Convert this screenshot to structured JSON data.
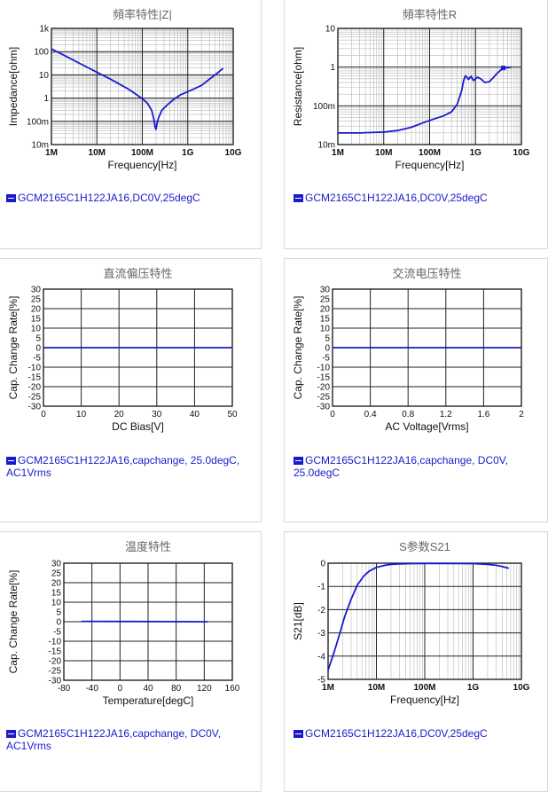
{
  "chart_data": [
    {
      "type": "line",
      "title": "頻率特性|Z|",
      "xlabel": "Frequency[Hz]",
      "ylabel": "Impedance[ohm]",
      "xscale": "log",
      "yscale": "log",
      "xlim": [
        1000000,
        10000000000
      ],
      "ylim": [
        0.01,
        1000
      ],
      "xticks": [
        {
          "v": 1000000,
          "label": "1M"
        },
        {
          "v": 10000000,
          "label": "10M"
        },
        {
          "v": 100000000,
          "label": "100M"
        },
        {
          "v": 1000000000,
          "label": "1G"
        },
        {
          "v": 10000000000,
          "label": "10G"
        }
      ],
      "yticks": [
        {
          "v": 0.01,
          "label": "10m"
        },
        {
          "v": 0.1,
          "label": "100m"
        },
        {
          "v": 1,
          "label": "1"
        },
        {
          "v": 10,
          "label": "10"
        },
        {
          "v": 100,
          "label": "100"
        },
        {
          "v": 1000,
          "label": "1k"
        }
      ],
      "grid": true,
      "color": "#1a1acc",
      "series": [
        {
          "x": [
            1000000,
            2000000,
            5000000,
            10000000,
            20000000,
            50000000,
            100000000,
            130000000,
            160000000,
            180000000,
            190000000,
            200000000,
            210000000,
            230000000,
            270000000,
            350000000,
            500000000,
            700000000,
            1000000000,
            1500000000,
            2000000000,
            3000000000,
            4000000000,
            6000000000
          ],
          "y": [
            133,
            66,
            26,
            13,
            6.5,
            2.4,
            0.95,
            0.6,
            0.3,
            0.12,
            0.06,
            0.045,
            0.08,
            0.15,
            0.3,
            0.5,
            0.9,
            1.4,
            1.9,
            2.7,
            3.5,
            6.5,
            10,
            19
          ]
        }
      ],
      "legend": "GCM2165C1H122JA16,DC0V,25degC"
    },
    {
      "type": "line",
      "title": "頻率特性R",
      "xlabel": "Frequency[Hz]",
      "ylabel": "Resistance[ohm]",
      "xscale": "log",
      "yscale": "log",
      "xlim": [
        1000000,
        10000000000
      ],
      "ylim": [
        0.01,
        10
      ],
      "xticks": [
        {
          "v": 1000000,
          "label": "1M"
        },
        {
          "v": 10000000,
          "label": "10M"
        },
        {
          "v": 100000000,
          "label": "100M"
        },
        {
          "v": 1000000000,
          "label": "1G"
        },
        {
          "v": 10000000000,
          "label": "10G"
        }
      ],
      "yticks": [
        {
          "v": 0.01,
          "label": "10m"
        },
        {
          "v": 0.1,
          "label": "100m"
        },
        {
          "v": 1,
          "label": "1"
        },
        {
          "v": 10,
          "label": "10"
        }
      ],
      "grid": true,
      "color": "#1a1acc",
      "series": [
        {
          "x": [
            1000000,
            3000000,
            10000000,
            20000000,
            40000000,
            70000000,
            100000000,
            200000000,
            300000000,
            400000000,
            500000000,
            550000000,
            600000000,
            650000000,
            700000000,
            800000000,
            900000000,
            1000000000,
            1100000000,
            1300000000,
            1600000000,
            2000000000,
            2500000000,
            3000000000,
            4000000000,
            6000000000
          ],
          "y": [
            0.02,
            0.02,
            0.021,
            0.023,
            0.028,
            0.036,
            0.042,
            0.055,
            0.07,
            0.11,
            0.25,
            0.45,
            0.6,
            0.55,
            0.48,
            0.58,
            0.45,
            0.5,
            0.55,
            0.5,
            0.4,
            0.42,
            0.55,
            0.7,
            0.95,
            1.0
          ]
        }
      ],
      "markers": [
        {
          "x": 4000000000,
          "y": 0.95
        }
      ],
      "legend": "GCM2165C1H122JA16,DC0V,25degC"
    },
    {
      "type": "line",
      "title": "直流偏压特性",
      "xlabel": "DC Bias[V]",
      "ylabel": "Cap. Change Rate[%]",
      "xlim": [
        0,
        50
      ],
      "ylim": [
        -30,
        30
      ],
      "xticks": [
        {
          "v": 0,
          "label": "0"
        },
        {
          "v": 10,
          "label": "10"
        },
        {
          "v": 20,
          "label": "20"
        },
        {
          "v": 30,
          "label": "30"
        },
        {
          "v": 40,
          "label": "40"
        },
        {
          "v": 50,
          "label": "50"
        }
      ],
      "yticks": [
        {
          "v": -30,
          "label": "-30"
        },
        {
          "v": -25,
          "label": "-25"
        },
        {
          "v": -20,
          "label": "-20"
        },
        {
          "v": -15,
          "label": "-15"
        },
        {
          "v": -10,
          "label": "-10"
        },
        {
          "v": -5,
          "label": "-5"
        },
        {
          "v": 0,
          "label": "0"
        },
        {
          "v": 5,
          "label": "5"
        },
        {
          "v": 10,
          "label": "10"
        },
        {
          "v": 15,
          "label": "15"
        },
        {
          "v": 20,
          "label": "20"
        },
        {
          "v": 25,
          "label": "25"
        },
        {
          "v": 30,
          "label": "30"
        }
      ],
      "grid": true,
      "color": "#1a1acc",
      "series": [
        {
          "x": [
            0,
            50
          ],
          "y": [
            0,
            0
          ]
        }
      ],
      "legend": "GCM2165C1H122JA16,capchange, 25.0degC, AC1Vrms"
    },
    {
      "type": "line",
      "title": "交流电压特性",
      "xlabel": "AC Voltage[Vrms]",
      "ylabel": "Cap. Change Rate[%]",
      "xlim": [
        0,
        2
      ],
      "ylim": [
        -30,
        30
      ],
      "xticks": [
        {
          "v": 0,
          "label": "0"
        },
        {
          "v": 0.4,
          "label": "0.4"
        },
        {
          "v": 0.8,
          "label": "0.8"
        },
        {
          "v": 1.2,
          "label": "1.2"
        },
        {
          "v": 1.6,
          "label": "1.6"
        },
        {
          "v": 2,
          "label": "2"
        }
      ],
      "yticks": [
        {
          "v": -30,
          "label": "-30"
        },
        {
          "v": -25,
          "label": "-25"
        },
        {
          "v": -20,
          "label": "-20"
        },
        {
          "v": -15,
          "label": "-15"
        },
        {
          "v": -10,
          "label": "-10"
        },
        {
          "v": -5,
          "label": "-5"
        },
        {
          "v": 0,
          "label": "0"
        },
        {
          "v": 5,
          "label": "5"
        },
        {
          "v": 10,
          "label": "10"
        },
        {
          "v": 15,
          "label": "15"
        },
        {
          "v": 20,
          "label": "20"
        },
        {
          "v": 25,
          "label": "25"
        },
        {
          "v": 30,
          "label": "30"
        }
      ],
      "grid": true,
      "color": "#1a1acc",
      "series": [
        {
          "x": [
            0,
            2
          ],
          "y": [
            0,
            0
          ]
        }
      ],
      "legend": "GCM2165C1H122JA16,capchange, DC0V, 25.0degC"
    },
    {
      "type": "line",
      "title": "温度特性",
      "xlabel": "Temperature[degC]",
      "ylabel": "Cap. Change Rate[%]",
      "xlim": [
        -80,
        160
      ],
      "ylim": [
        -30,
        30
      ],
      "xticks": [
        {
          "v": -80,
          "label": "-80"
        },
        {
          "v": -40,
          "label": "-40"
        },
        {
          "v": 0,
          "label": "0"
        },
        {
          "v": 40,
          "label": "40"
        },
        {
          "v": 80,
          "label": "80"
        },
        {
          "v": 120,
          "label": "120"
        },
        {
          "v": 160,
          "label": "160"
        }
      ],
      "yticks": [
        {
          "v": -30,
          "label": "-30"
        },
        {
          "v": -25,
          "label": "-25"
        },
        {
          "v": -20,
          "label": "-20"
        },
        {
          "v": -15,
          "label": "-15"
        },
        {
          "v": -10,
          "label": "-10"
        },
        {
          "v": -5,
          "label": "-5"
        },
        {
          "v": 0,
          "label": "0"
        },
        {
          "v": 5,
          "label": "5"
        },
        {
          "v": 10,
          "label": "10"
        },
        {
          "v": 15,
          "label": "15"
        },
        {
          "v": 20,
          "label": "20"
        },
        {
          "v": 25,
          "label": "25"
        },
        {
          "v": 30,
          "label": "30"
        }
      ],
      "grid": true,
      "color": "#1a1acc",
      "series": [
        {
          "x": [
            -55,
            125
          ],
          "y": [
            0.2,
            0.0
          ]
        }
      ],
      "legend": "GCM2165C1H122JA16,capchange, DC0V, AC1Vrms"
    },
    {
      "type": "line",
      "title": "S参数S21",
      "xlabel": "Frequency[Hz]",
      "ylabel": "S21[dB]",
      "xscale": "log",
      "xlim": [
        1000000,
        10000000000
      ],
      "ylim": [
        -5,
        0
      ],
      "xticks": [
        {
          "v": 1000000,
          "label": "1M"
        },
        {
          "v": 10000000,
          "label": "10M"
        },
        {
          "v": 100000000,
          "label": "100M"
        },
        {
          "v": 1000000000,
          "label": "1G"
        },
        {
          "v": 10000000000,
          "label": "10G"
        }
      ],
      "yticks": [
        {
          "v": -5,
          "label": "-5"
        },
        {
          "v": -4,
          "label": "-4"
        },
        {
          "v": -3,
          "label": "-3"
        },
        {
          "v": -2,
          "label": "-2"
        },
        {
          "v": -1,
          "label": "-1"
        },
        {
          "v": 0,
          "label": "0"
        }
      ],
      "grid": true,
      "color": "#1a1acc",
      "series": [
        {
          "x": [
            1000000,
            1300000,
            1700000,
            2200000,
            3000000,
            4000000,
            5500000,
            7000000,
            10000000,
            15000000,
            20000000,
            30000000,
            50000000,
            100000000,
            300000000,
            1000000000,
            2000000000,
            3000000000,
            4000000000,
            5500000000
          ],
          "y": [
            -4.6,
            -3.9,
            -3.1,
            -2.3,
            -1.55,
            -0.95,
            -0.55,
            -0.35,
            -0.18,
            -0.09,
            -0.05,
            -0.03,
            -0.02,
            -0.01,
            -0.01,
            -0.02,
            -0.05,
            -0.09,
            -0.14,
            -0.22
          ]
        }
      ],
      "legend": "GCM2165C1H122JA16,DC0V,25degC"
    }
  ]
}
